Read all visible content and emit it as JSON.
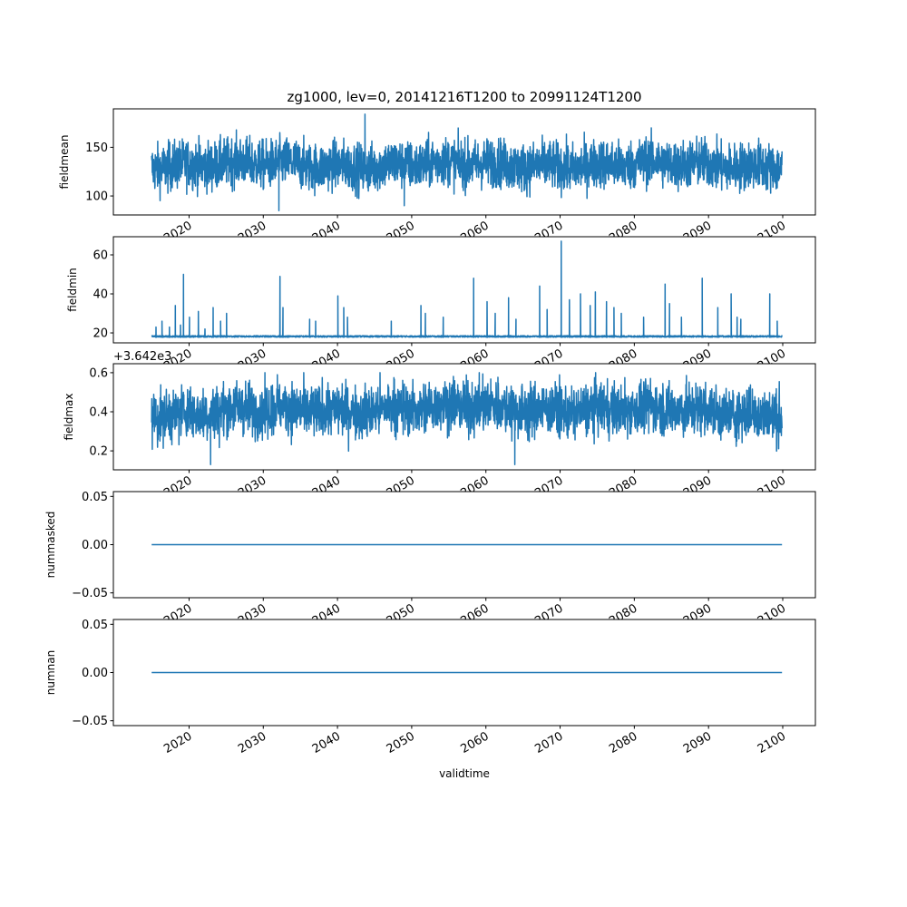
{
  "chart_data": {
    "type": "line",
    "title": "zg1000, lev=0, 20141216T1200 to 20991124T1200",
    "xlabel": "validtime",
    "xlim": [
      2009.8,
      2104.4
    ],
    "x_start": 2014.96,
    "x_end": 2099.9,
    "xticks": [
      2020,
      2030,
      2040,
      2050,
      2060,
      2070,
      2080,
      2090,
      2100
    ],
    "xtick_labels": [
      "2020",
      "2030",
      "2040",
      "2050",
      "2060",
      "2070",
      "2080",
      "2090",
      "2100"
    ],
    "color": "#1f77b4",
    "grid": false,
    "panels": [
      {
        "name": "fieldmean",
        "ylabel": "fieldmean",
        "ylim": [
          80.5,
          189.5
        ],
        "yticks": [
          100,
          150
        ],
        "ytick_labels": [
          "100",
          "150"
        ],
        "mean": 132,
        "spread": 14,
        "min": 85,
        "max": 184,
        "offset_text": ""
      },
      {
        "name": "fieldmin",
        "ylabel": "fieldmin",
        "ylim": [
          14.9,
          69.3
        ],
        "yticks": [
          20,
          40,
          60
        ],
        "ytick_labels": [
          "20",
          "40",
          "60"
        ],
        "baseline": 17.8,
        "offset_text": "",
        "spikes": [
          [
            2015.5,
            23
          ],
          [
            2016.3,
            26
          ],
          [
            2017.3,
            23
          ],
          [
            2018.1,
            34
          ],
          [
            2018.8,
            24
          ],
          [
            2019.2,
            50
          ],
          [
            2020.0,
            28
          ],
          [
            2021.2,
            31
          ],
          [
            2022.1,
            22
          ],
          [
            2023.2,
            33
          ],
          [
            2024.2,
            26
          ],
          [
            2025.0,
            30
          ],
          [
            2032.2,
            49
          ],
          [
            2032.6,
            33
          ],
          [
            2036.2,
            27
          ],
          [
            2037.0,
            26
          ],
          [
            2040.0,
            39
          ],
          [
            2040.8,
            33
          ],
          [
            2041.3,
            28
          ],
          [
            2047.2,
            26
          ],
          [
            2051.2,
            34
          ],
          [
            2051.8,
            30
          ],
          [
            2054.2,
            28
          ],
          [
            2058.3,
            48
          ],
          [
            2060.1,
            36
          ],
          [
            2061.2,
            30
          ],
          [
            2063.0,
            38
          ],
          [
            2064.0,
            27
          ],
          [
            2067.2,
            44
          ],
          [
            2068.2,
            32
          ],
          [
            2070.1,
            67
          ],
          [
            2071.2,
            37
          ],
          [
            2072.7,
            40
          ],
          [
            2074.0,
            34
          ],
          [
            2074.7,
            41
          ],
          [
            2076.2,
            36
          ],
          [
            2077.2,
            33
          ],
          [
            2078.2,
            30
          ],
          [
            2081.2,
            28
          ],
          [
            2084.1,
            45
          ],
          [
            2084.7,
            35
          ],
          [
            2086.3,
            28
          ],
          [
            2089.1,
            48
          ],
          [
            2091.2,
            33
          ],
          [
            2093.0,
            40
          ],
          [
            2093.8,
            28
          ],
          [
            2094.3,
            27
          ],
          [
            2098.2,
            40
          ],
          [
            2099.2,
            26
          ]
        ]
      },
      {
        "name": "fieldmax",
        "ylabel": "fieldmax",
        "ylim": [
          0.103,
          0.646
        ],
        "yticks": [
          0.2,
          0.4,
          0.6
        ],
        "ytick_labels": [
          "0.2",
          "0.4",
          "0.6"
        ],
        "mean": 0.39,
        "spread": 0.075,
        "min": 0.13,
        "max": 0.6,
        "offset_text": "+3.642e3"
      },
      {
        "name": "nummasked",
        "ylabel": "nummasked",
        "ylim": [
          -0.055,
          0.055
        ],
        "yticks": [
          -0.05,
          0,
          0.05
        ],
        "ytick_labels": [
          "−0.05",
          "0.00",
          "0.05"
        ],
        "constant": 0,
        "offset_text": ""
      },
      {
        "name": "numnan",
        "ylabel": "numnan",
        "ylim": [
          -0.055,
          0.055
        ],
        "yticks": [
          -0.05,
          0,
          0.05
        ],
        "ytick_labels": [
          "−0.05",
          "0.00",
          "0.05"
        ],
        "constant": 0,
        "offset_text": ""
      }
    ]
  }
}
